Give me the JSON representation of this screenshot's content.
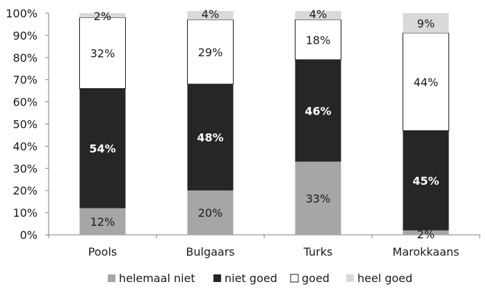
{
  "chart_data": {
    "type": "bar",
    "stacked": true,
    "categories": [
      "Pools",
      "Bulgaars",
      "Turks",
      "Marokkaans"
    ],
    "series": [
      {
        "name": "helemaal niet",
        "values": [
          12,
          20,
          33,
          2
        ],
        "labels": [
          "12%",
          "20%",
          "33%",
          "2%"
        ],
        "color": "#a6a6a6",
        "label_color": "#1a1a1a",
        "border": "none"
      },
      {
        "name": "niet goed",
        "values": [
          54,
          48,
          46,
          45
        ],
        "labels": [
          "54%",
          "48%",
          "46%",
          "45%"
        ],
        "color": "#262626",
        "label_color": "#ffffff",
        "border": "none"
      },
      {
        "name": "goed",
        "values": [
          32,
          29,
          18,
          44
        ],
        "labels": [
          "32%",
          "29%",
          "18%",
          "44%"
        ],
        "color": "#ffffff",
        "label_color": "#1a1a1a",
        "border": "#1a1a1a"
      },
      {
        "name": "heel goed",
        "values": [
          2,
          4,
          4,
          9
        ],
        "labels": [
          "2%",
          "4%",
          "4%",
          "9%"
        ],
        "color": "#d9d9d9",
        "label_color": "#1a1a1a",
        "border": "none"
      }
    ],
    "ylim": [
      0,
      100
    ],
    "yticks": [
      "0%",
      "10%",
      "20%",
      "30%",
      "40%",
      "50%",
      "60%",
      "70%",
      "80%",
      "90%",
      "100%"
    ],
    "grid": false,
    "legend_position": "bottom",
    "title": "",
    "xlabel": "",
    "ylabel": ""
  }
}
